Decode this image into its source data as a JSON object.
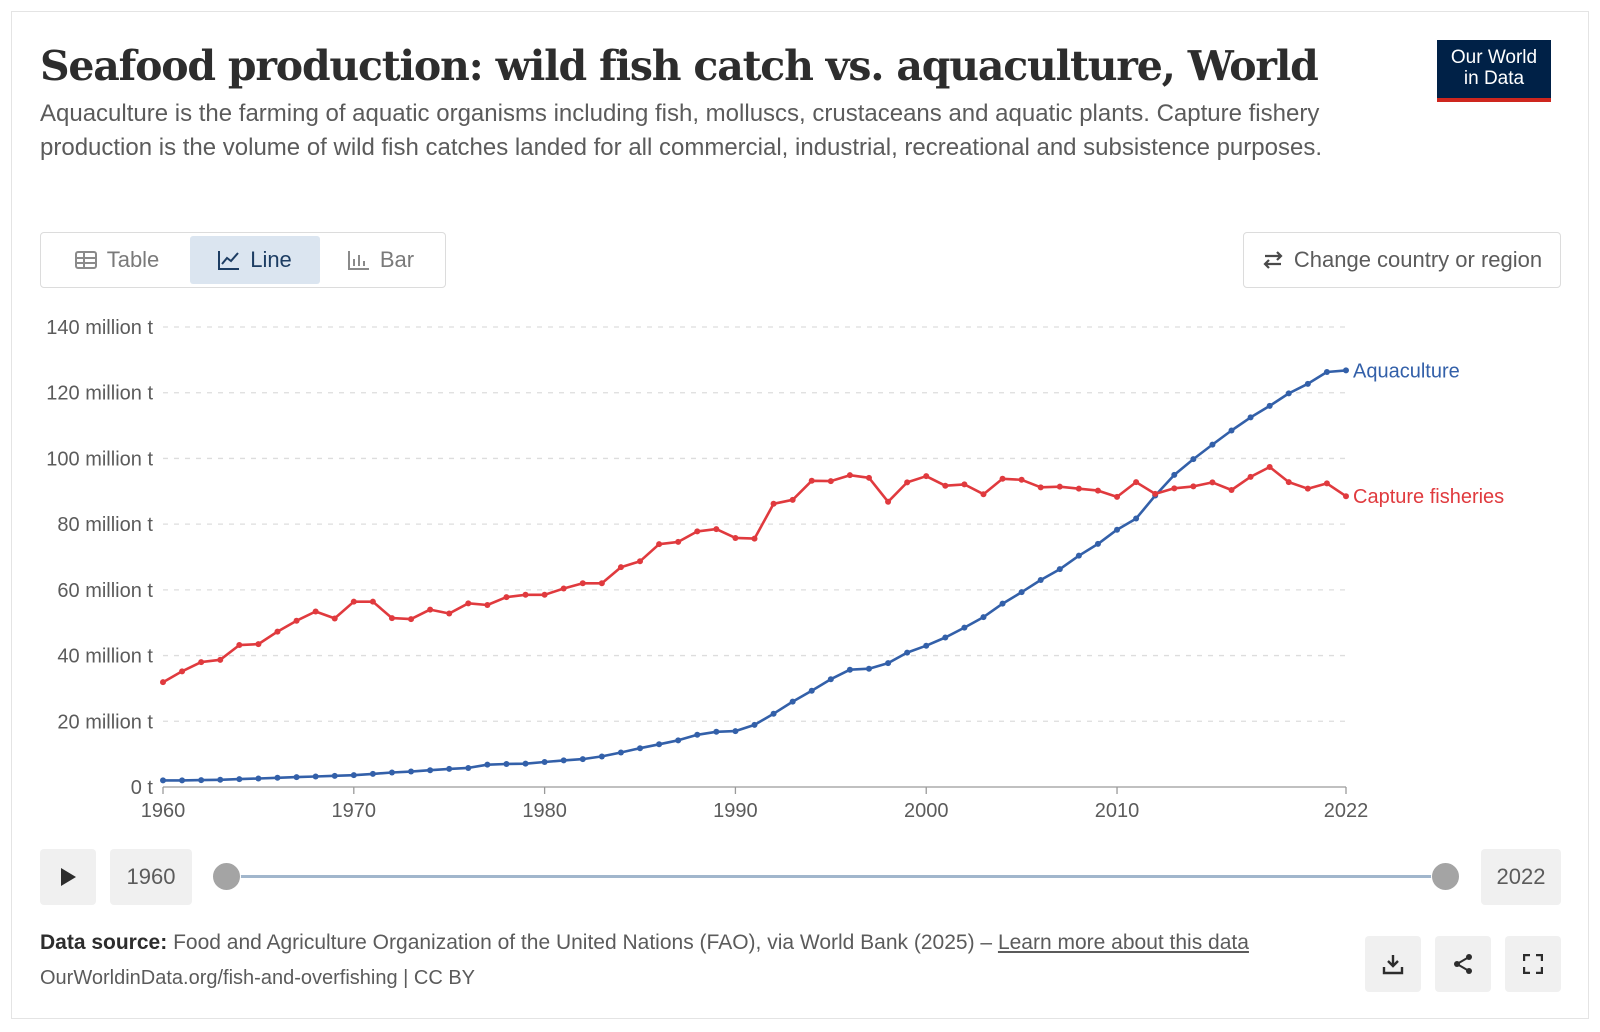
{
  "title": "Seafood production: wild fish catch vs. aquaculture, World",
  "subtitle": "Aquaculture is the farming of aquatic organisms including fish, molluscs, crustaceans and aquatic plants. Capture fishery production is the volume of wild fish catches landed for all commercial, industrial, recreational and subsistence purposes.",
  "logo": {
    "line1": "Our World",
    "line2": "in Data"
  },
  "tabs": [
    {
      "label": "Table",
      "icon": "table-icon"
    },
    {
      "label": "Line",
      "icon": "line-chart-icon",
      "active": true
    },
    {
      "label": "Bar",
      "icon": "bar-chart-icon"
    }
  ],
  "change_button": {
    "label": "Change country or region",
    "icon": "swap-icon"
  },
  "timeline": {
    "start": "1960",
    "end": "2022",
    "play_icon": "play-icon"
  },
  "footer": {
    "source_label": "Data source:",
    "source_text": "Food and Agriculture Organization of the United Nations (FAO), via World Bank (2025) –",
    "learn_more": "Learn more about this data",
    "url_line": "OurWorldinData.org/fish-and-overfishing | CC BY"
  },
  "actions": [
    {
      "icon": "download-icon"
    },
    {
      "icon": "share-icon"
    },
    {
      "icon": "fullscreen-icon"
    }
  ],
  "colors": {
    "aquaculture": "#3360a9",
    "capture": "#e03a3e",
    "grid": "#dddddd",
    "active_tab": "#dbe5f0",
    "logo_bg": "#002147",
    "logo_accent": "#ce261e"
  },
  "chart_data": {
    "type": "line",
    "title": "Seafood production: wild fish catch vs. aquaculture, World",
    "xlabel": "",
    "ylabel": "",
    "xlim": [
      1960,
      2022
    ],
    "ylim": [
      0,
      140000000
    ],
    "y_ticks": [
      0,
      20000000,
      40000000,
      60000000,
      80000000,
      100000000,
      120000000,
      140000000
    ],
    "y_tick_labels": [
      "0 t",
      "20 million t",
      "40 million t",
      "60 million t",
      "80 million t",
      "100 million t",
      "120 million t",
      "140 million t"
    ],
    "x_ticks": [
      1960,
      1970,
      1980,
      1990,
      2000,
      2010,
      2022
    ],
    "grid": "horizontal dashed",
    "x": [
      1960,
      1961,
      1962,
      1963,
      1964,
      1965,
      1966,
      1967,
      1968,
      1969,
      1970,
      1971,
      1972,
      1973,
      1974,
      1975,
      1976,
      1977,
      1978,
      1979,
      1980,
      1981,
      1982,
      1983,
      1984,
      1985,
      1986,
      1987,
      1988,
      1989,
      1990,
      1991,
      1992,
      1993,
      1994,
      1995,
      1996,
      1997,
      1998,
      1999,
      2000,
      2001,
      2002,
      2003,
      2004,
      2005,
      2006,
      2007,
      2008,
      2009,
      2010,
      2011,
      2012,
      2013,
      2014,
      2015,
      2016,
      2017,
      2018,
      2019,
      2020,
      2021,
      2022
    ],
    "series": [
      {
        "name": "Aquaculture",
        "color": "#3360a9",
        "values": [
          2000000,
          2000000,
          2100000,
          2200000,
          2400000,
          2600000,
          2800000,
          3000000,
          3200000,
          3400000,
          3600000,
          4000000,
          4400000,
          4700000,
          5100000,
          5500000,
          5800000,
          6800000,
          7000000,
          7100000,
          7600000,
          8100000,
          8500000,
          9300000,
          10500000,
          11800000,
          13000000,
          14200000,
          15900000,
          16800000,
          17000000,
          18900000,
          22300000,
          26000000,
          29300000,
          32800000,
          35700000,
          36000000,
          37700000,
          40900000,
          43000000,
          45500000,
          48500000,
          51700000,
          55800000,
          59300000,
          63000000,
          66300000,
          70400000,
          74000000,
          78300000,
          81700000,
          88700000,
          95000000,
          99800000,
          104200000,
          108500000,
          112500000,
          116000000,
          119800000,
          122700000,
          126300000,
          126800000
        ]
      },
      {
        "name": "Capture fisheries",
        "color": "#e03a3e",
        "values": [
          31900000,
          35200000,
          38000000,
          38700000,
          43200000,
          43500000,
          47300000,
          50600000,
          53400000,
          51300000,
          56400000,
          56400000,
          51400000,
          51100000,
          54000000,
          52800000,
          55900000,
          55400000,
          57800000,
          58500000,
          58500000,
          60400000,
          62000000,
          62000000,
          66900000,
          68700000,
          73900000,
          74600000,
          77800000,
          78500000,
          75800000,
          75600000,
          86200000,
          87400000,
          93200000,
          93100000,
          94900000,
          94100000,
          86800000,
          92700000,
          94600000,
          91700000,
          92100000,
          89100000,
          93800000,
          93500000,
          91200000,
          91400000,
          90800000,
          90200000,
          88300000,
          92800000,
          89200000,
          90900000,
          91500000,
          92700000,
          90400000,
          94400000,
          97400000,
          92800000,
          90800000,
          92400000,
          88500000
        ]
      }
    ]
  }
}
